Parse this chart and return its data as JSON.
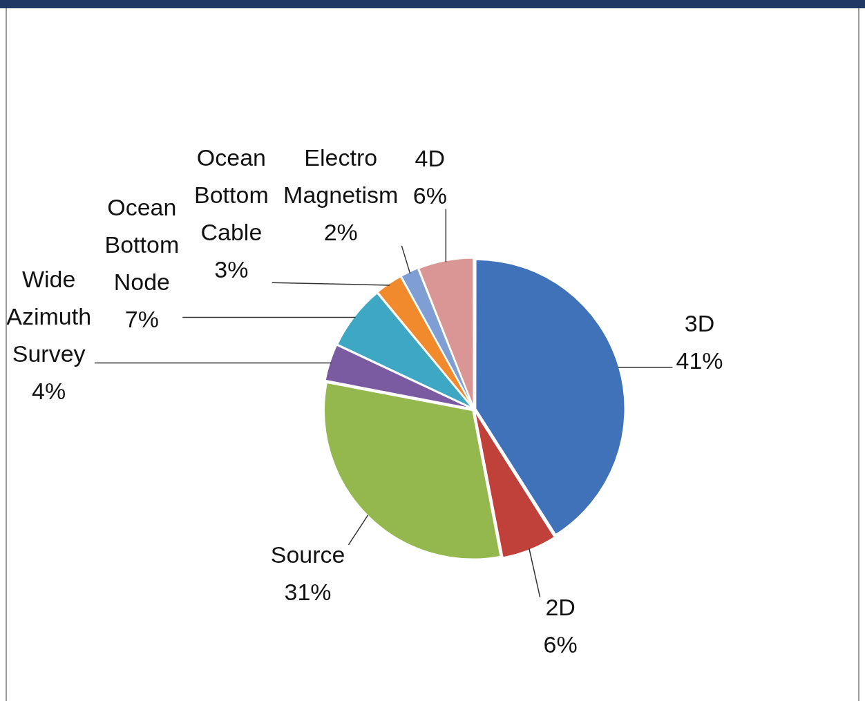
{
  "chart_data": {
    "type": "pie",
    "categories": [
      "3D",
      "2D",
      "Source",
      "Wide Azimuth Survey",
      "Ocean Bottom Node",
      "Ocean Bottom Cable",
      "Electro Magnetism",
      "4D"
    ],
    "values": [
      41,
      6,
      31,
      4,
      7,
      3,
      2,
      6
    ],
    "value_labels": [
      "41%",
      "6%",
      "31%",
      "4%",
      "7%",
      "3%",
      "2%",
      "6%"
    ],
    "colors": [
      "#3f72b8",
      "#c0403a",
      "#94b84e",
      "#7a5aa0",
      "#3ea8c4",
      "#f08a2c",
      "#7f9fd4",
      "#d99694"
    ],
    "legend": false
  }
}
